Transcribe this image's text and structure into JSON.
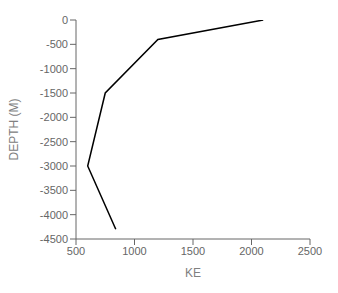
{
  "chart_data": {
    "type": "line",
    "x": [
      2100,
      1200,
      750,
      600,
      840
    ],
    "values": [
      0,
      -400,
      -1500,
      -3000,
      -4300
    ],
    "xlabel": "KE",
    "ylabel": "DEPTH (M)",
    "xlim": [
      500,
      2500
    ],
    "ylim": [
      -4500,
      0
    ],
    "xticks": [
      500,
      1000,
      1500,
      2000,
      2500
    ],
    "yticks": [
      0,
      -500,
      -1000,
      -1500,
      -2000,
      -2500,
      -3000,
      -3500,
      -4000,
      -4500
    ],
    "color": "#000000"
  }
}
